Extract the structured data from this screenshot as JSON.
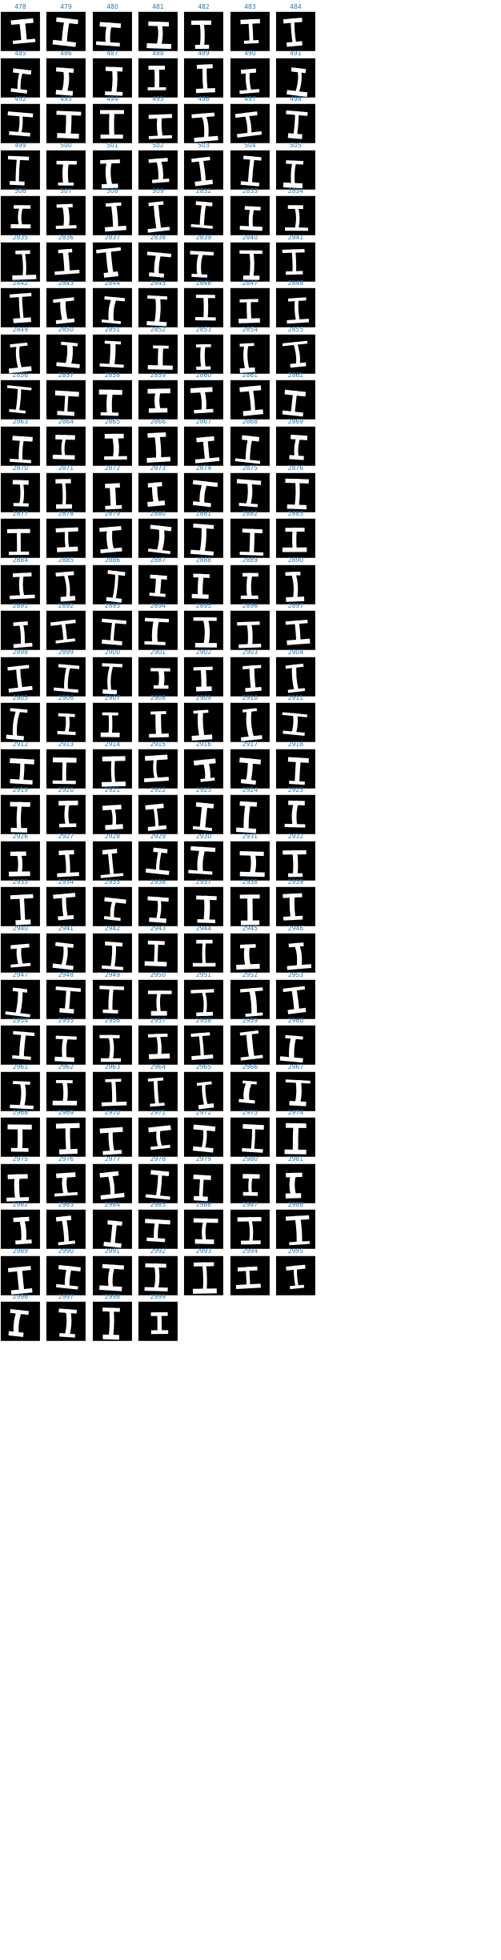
{
  "colors": {
    "label": "#1f77b4",
    "tile_background": "#000000",
    "glyph": "#ffffff"
  },
  "glyph_icon": "letter-I-bitmap",
  "columns": 7,
  "labels": [
    "478",
    "479",
    "480",
    "481",
    "482",
    "483",
    "484",
    "485",
    "486",
    "487",
    "488",
    "489",
    "490",
    "491",
    "492",
    "493",
    "494",
    "495",
    "496",
    "497",
    "498",
    "499",
    "500",
    "501",
    "502",
    "503",
    "504",
    "505",
    "506",
    "507",
    "508",
    "509",
    "2832",
    "2833",
    "2834",
    "2835",
    "2836",
    "2837",
    "2838",
    "2839",
    "2840",
    "2841",
    "2842",
    "2843",
    "2844",
    "2845",
    "2846",
    "2847",
    "2848",
    "2849",
    "2850",
    "2851",
    "2852",
    "2853",
    "2854",
    "2855",
    "2856",
    "2857",
    "2858",
    "2859",
    "2860",
    "2861",
    "2862",
    "2863",
    "2864",
    "2865",
    "2866",
    "2867",
    "2868",
    "2869",
    "2870",
    "2871",
    "2872",
    "2873",
    "2874",
    "2875",
    "2876",
    "2877",
    "2878",
    "2879",
    "2880",
    "2881",
    "2882",
    "2883",
    "2884",
    "2885",
    "2886",
    "2887",
    "2888",
    "2889",
    "2890",
    "2891",
    "2892",
    "2893",
    "2894",
    "2895",
    "2896",
    "2897",
    "2898",
    "2899",
    "2900",
    "2901",
    "2902",
    "2903",
    "2904",
    "2905",
    "2906",
    "2907",
    "2908",
    "2909",
    "2910",
    "2911",
    "2912",
    "2913",
    "2914",
    "2915",
    "2916",
    "2917",
    "2918",
    "2919",
    "2920",
    "2921",
    "2922",
    "2923",
    "2924",
    "2925",
    "2926",
    "2927",
    "2928",
    "2929",
    "2930",
    "2931",
    "2932",
    "2933",
    "2934",
    "2935",
    "2936",
    "2937",
    "2938",
    "2939",
    "2940",
    "2941",
    "2942",
    "2943",
    "2944",
    "2945",
    "2946",
    "2947",
    "2948",
    "2949",
    "2950",
    "2951",
    "2952",
    "2953",
    "2954",
    "2955",
    "2956",
    "2957",
    "2958",
    "2959",
    "2960",
    "2961",
    "2962",
    "2963",
    "2964",
    "2965",
    "2966",
    "2967",
    "2968",
    "2969",
    "2970",
    "2971",
    "2972",
    "2973",
    "2974",
    "2975",
    "2976",
    "2977",
    "2978",
    "2979",
    "2980",
    "2981",
    "2982",
    "2983",
    "2984",
    "2985",
    "2986",
    "2987",
    "2988",
    "2989",
    "2990",
    "2991",
    "2992",
    "2993",
    "2994",
    "2995",
    "2996",
    "2997",
    "2998",
    "2999"
  ]
}
